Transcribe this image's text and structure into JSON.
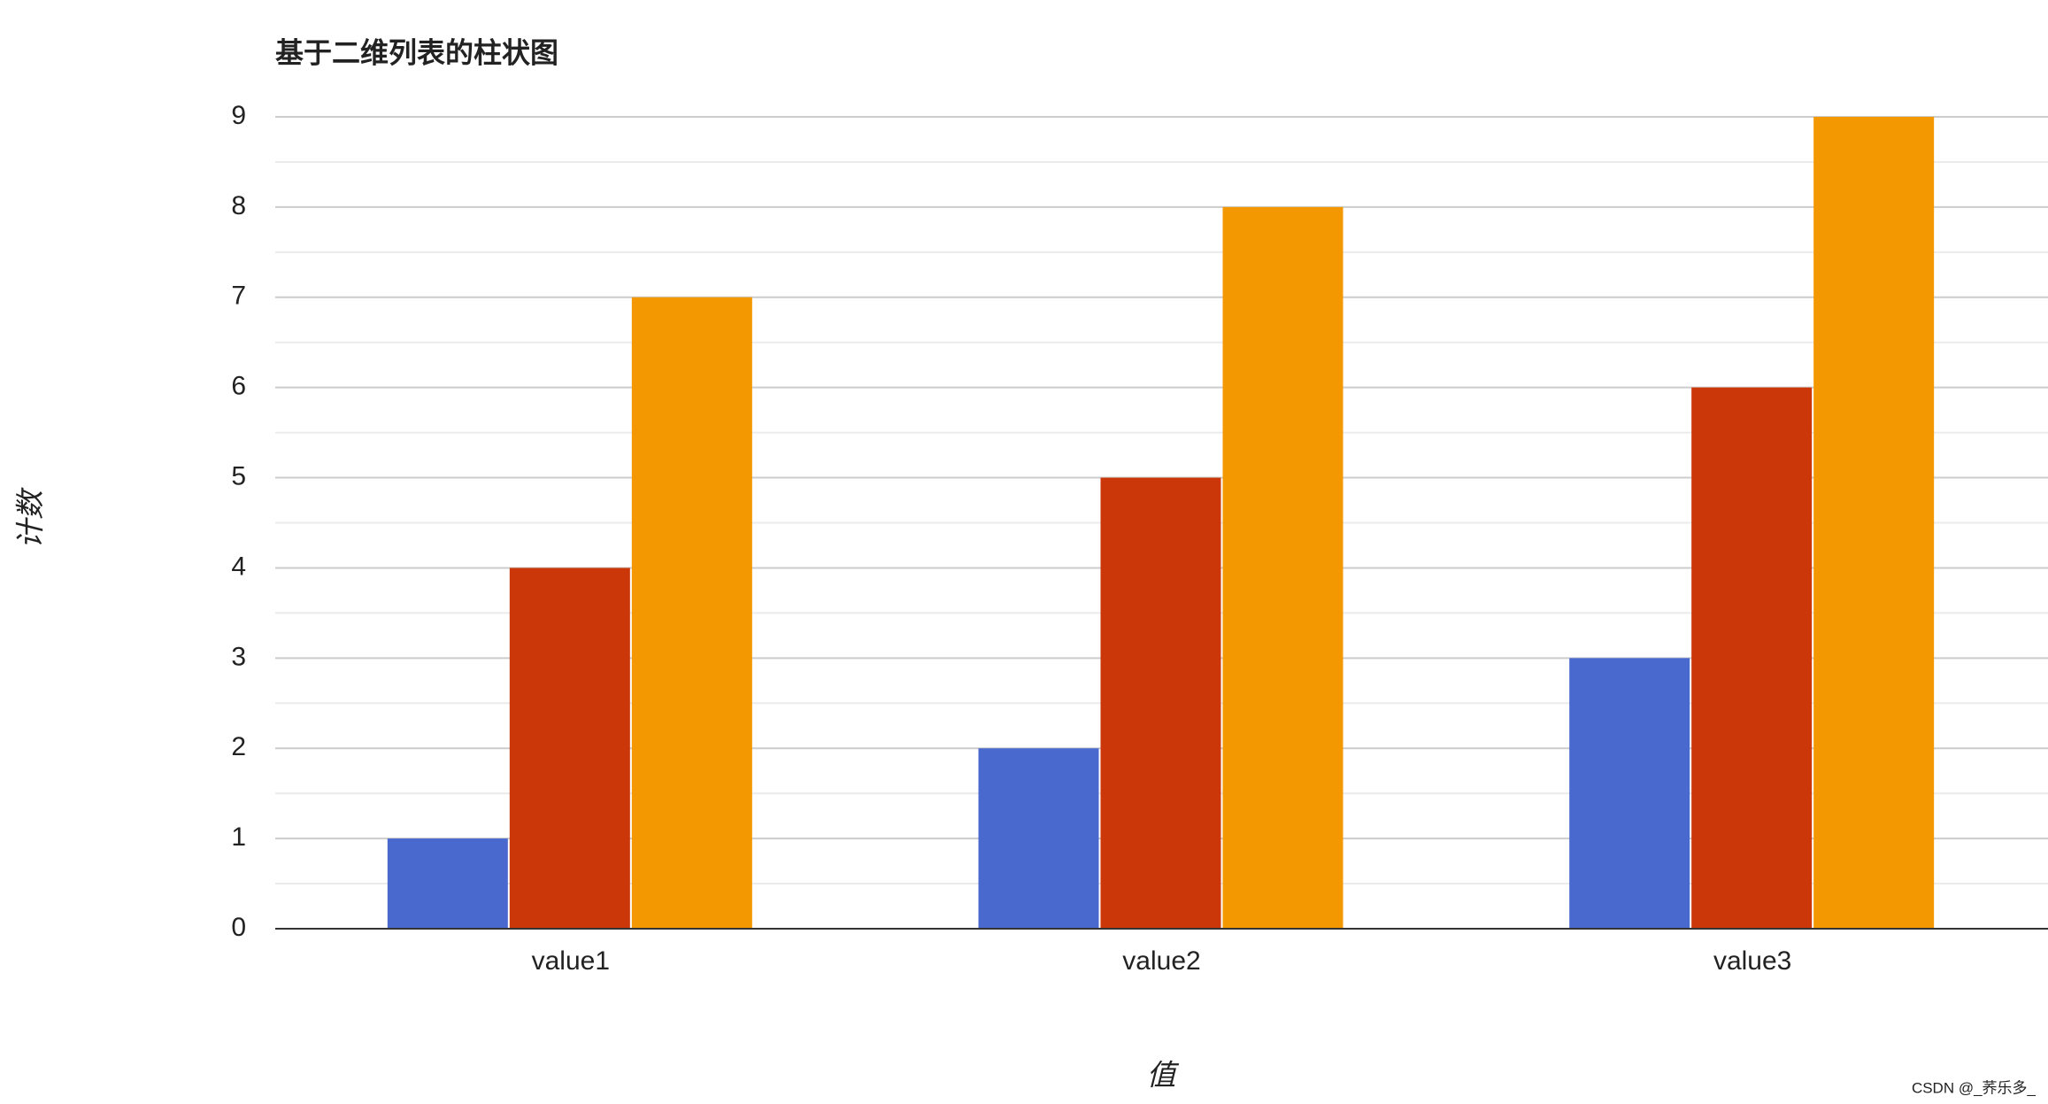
{
  "chart_data": {
    "type": "bar",
    "title": "基于二维列表的柱状图",
    "x_label": "值",
    "y_label": "计数",
    "categories": [
      "value1",
      "value2",
      "value3"
    ],
    "series": [
      {
        "color": "#4a69cf",
        "values": [
          1,
          2,
          3
        ]
      },
      {
        "color": "#cc3709",
        "values": [
          4,
          5,
          6
        ]
      },
      {
        "color": "#f39800",
        "values": [
          7,
          8,
          9
        ]
      }
    ],
    "ylim": [
      0,
      9
    ],
    "yticks": [
      0,
      1,
      2,
      3,
      4,
      5,
      6,
      7,
      8,
      9
    ],
    "grid": true
  },
  "watermark": "CSDN @_荞乐多_"
}
